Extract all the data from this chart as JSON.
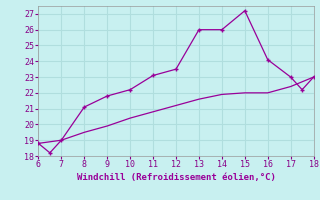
{
  "title": "",
  "xlabel": "Windchill (Refroidissement éolien,°C)",
  "ylabel": "",
  "bg_color": "#c8f0f0",
  "grid_color": "#b0dede",
  "line_color": "#990099",
  "xlim": [
    6,
    18
  ],
  "ylim": [
    18,
    27.5
  ],
  "yticks": [
    18,
    19,
    20,
    21,
    22,
    23,
    24,
    25,
    26,
    27
  ],
  "xticks": [
    6,
    7,
    8,
    9,
    10,
    11,
    12,
    13,
    14,
    15,
    16,
    17,
    18
  ],
  "curve1_x": [
    6,
    6.5,
    7,
    8,
    9,
    10,
    11,
    12,
    13,
    14,
    15,
    16,
    17,
    17.5,
    18
  ],
  "curve1_y": [
    18.8,
    18.2,
    19.0,
    21.1,
    21.8,
    22.2,
    23.1,
    23.5,
    26.0,
    26.0,
    27.2,
    24.1,
    23.0,
    22.2,
    23.0
  ],
  "curve2_x": [
    6,
    7,
    8,
    9,
    10,
    11,
    12,
    13,
    14,
    15,
    16,
    17,
    18
  ],
  "curve2_y": [
    18.8,
    19.0,
    19.5,
    19.9,
    20.4,
    20.8,
    21.2,
    21.6,
    21.9,
    22.0,
    22.0,
    22.4,
    23.0
  ]
}
